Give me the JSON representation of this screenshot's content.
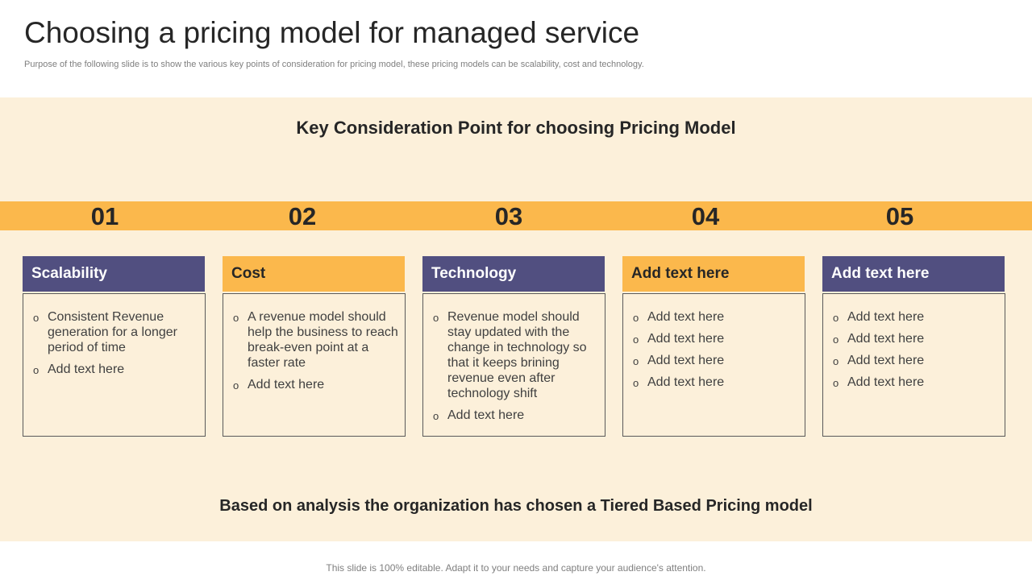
{
  "title": "Choosing a pricing model for managed service",
  "subtitle": "Purpose of the following slide is to show the various key points of consideration for pricing model, these pricing models can be scalability, cost and technology.",
  "panel_heading": "Key Consideration Point for choosing Pricing Model",
  "colors": {
    "panel_bg": "#fcf0da",
    "orange": "#fbb84c",
    "purple": "#514f80"
  },
  "numbers": [
    "01",
    "02",
    "03",
    "04",
    "05"
  ],
  "cards": [
    {
      "title": "Scalability",
      "items": [
        "Consistent Revenue generation for a longer period of time",
        "Add text here"
      ]
    },
    {
      "title": "Cost",
      "items": [
        "A revenue model should help the business to reach break-even point at a faster rate",
        "Add text here"
      ]
    },
    {
      "title": "Technology",
      "items": [
        "Revenue model should stay updated with the change in technology so that it keeps brining revenue even after technology shift",
        "Add text here"
      ]
    },
    {
      "title": "Add text here",
      "items": [
        "Add text here",
        "Add text here",
        "Add text here",
        "Add text here"
      ]
    },
    {
      "title": "Add text here",
      "items": [
        "Add text here",
        "Add text here",
        "Add text here",
        "Add text here"
      ]
    }
  ],
  "bullet_glyph": "o",
  "conclusion": "Based on analysis the organization has chosen a Tiered Based Pricing model",
  "footer": "This slide is 100% editable. Adapt it to your needs and capture your audience's attention."
}
